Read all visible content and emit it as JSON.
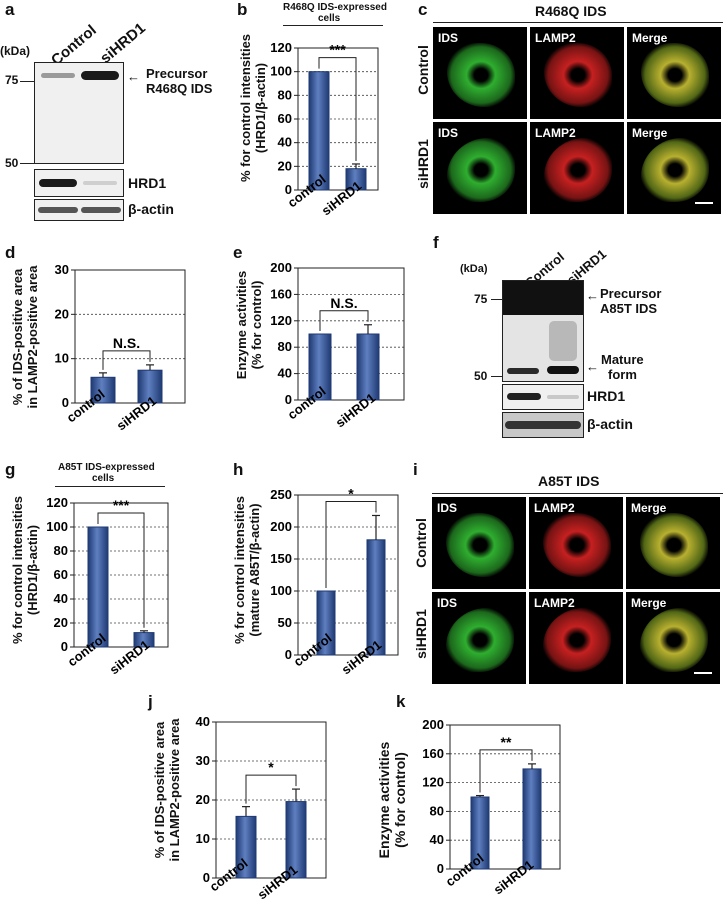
{
  "panels": {
    "a": {
      "letter": "a",
      "lanes": [
        "Control",
        "siHRD1"
      ],
      "kda_label": "(kDa)",
      "markers": [
        "75",
        "50"
      ],
      "precursor_label": "Precursor",
      "protein_label": "R468Q IDS",
      "hrd1_label": "HRD1",
      "actin_label": "β-actin"
    },
    "b": {
      "letter": "b",
      "header_line1": "R468Q IDS-expressed",
      "header_line2": "cells",
      "ylabel_line1": "% for control intensities",
      "ylabel_line2": "(HRD1/β-actin)",
      "significance": "***"
    },
    "c": {
      "letter": "c",
      "title": "R468Q IDS",
      "rows": [
        "Control",
        "siHRD1"
      ],
      "captions": [
        "IDS",
        "LAMP2",
        "Merge"
      ]
    },
    "d": {
      "letter": "d",
      "ylabel_line1": "% of IDS-positive area",
      "ylabel_line2": "in LAMP2-positive area",
      "significance": "N.S."
    },
    "e": {
      "letter": "e",
      "ylabel_line1": "Enzyme activities",
      "ylabel_line2": "(% for control)",
      "significance": "N.S."
    },
    "f": {
      "letter": "f",
      "lanes": [
        "Control",
        "siHRD1"
      ],
      "kda_label": "(kDa)",
      "markers": [
        "75",
        "50"
      ],
      "precursor_label": "Precursor",
      "protein_label": "A85T IDS",
      "mature_label1": "Mature",
      "mature_label2": "form",
      "hrd1_label": "HRD1",
      "actin_label": "β-actin"
    },
    "g": {
      "letter": "g",
      "header_line1": "A85T IDS-expressed",
      "header_line2": "cells",
      "ylabel_line1": "% for control intensities",
      "ylabel_line2": "(HRD1/β-actin)",
      "significance": "***"
    },
    "h": {
      "letter": "h",
      "ylabel_line1": "% for control intensities",
      "ylabel_line2": "(mature A85T/β-actin)",
      "significance": "*"
    },
    "i": {
      "letter": "i",
      "title": "A85T IDS",
      "rows": [
        "Control",
        "siHRD1"
      ],
      "captions": [
        "IDS",
        "LAMP2",
        "Merge"
      ]
    },
    "j": {
      "letter": "j",
      "ylabel_line1": "% of IDS-positive area",
      "ylabel_line2": "in LAMP2-positive area",
      "significance": "*"
    },
    "k": {
      "letter": "k",
      "ylabel_line1": "Enzyme activities",
      "ylabel_line2": "(% for control)",
      "significance": "**"
    }
  },
  "colors": {
    "bar": "#1f3a73",
    "bar_highlight": "#5f7fc0",
    "ids_green": "#2fae2f",
    "lamp2_red": "#c62020"
  },
  "chart_data": [
    {
      "id": "b",
      "type": "bar",
      "categories": [
        "control",
        "siHRD1"
      ],
      "values": [
        100,
        18
      ],
      "errors": [
        0,
        4
      ],
      "ylim": [
        0,
        120
      ],
      "yticks": [
        0,
        20,
        40,
        60,
        80,
        100,
        120
      ],
      "grid": true
    },
    {
      "id": "d",
      "type": "bar",
      "categories": [
        "control",
        "siHRD1"
      ],
      "values": [
        5.8,
        7.4
      ],
      "errors": [
        1.0,
        1.2
      ],
      "ylim": [
        0,
        30
      ],
      "yticks": [
        0,
        10,
        20,
        30
      ],
      "grid": true
    },
    {
      "id": "e",
      "type": "bar",
      "categories": [
        "control",
        "siHRD1"
      ],
      "values": [
        100,
        100
      ],
      "errors": [
        0,
        14
      ],
      "ylim": [
        0,
        200
      ],
      "yticks": [
        0,
        40,
        80,
        120,
        160,
        200
      ],
      "grid": true
    },
    {
      "id": "g",
      "type": "bar",
      "categories": [
        "control",
        "siHRD1"
      ],
      "values": [
        100,
        12
      ],
      "errors": [
        0,
        1.5
      ],
      "ylim": [
        0,
        120
      ],
      "yticks": [
        0,
        20,
        40,
        60,
        80,
        100,
        120
      ],
      "grid": true
    },
    {
      "id": "h",
      "type": "bar",
      "categories": [
        "control",
        "siHRD1"
      ],
      "values": [
        100,
        180
      ],
      "errors": [
        0,
        38
      ],
      "ylim": [
        0,
        250
      ],
      "yticks": [
        0,
        50,
        100,
        150,
        200,
        250
      ],
      "grid": true
    },
    {
      "id": "j",
      "type": "bar",
      "categories": [
        "control",
        "siHRD1"
      ],
      "values": [
        15.8,
        19.6
      ],
      "errors": [
        2.5,
        3.2
      ],
      "ylim": [
        0,
        40
      ],
      "yticks": [
        0,
        10,
        20,
        30,
        40
      ],
      "grid": true
    },
    {
      "id": "k",
      "type": "bar",
      "categories": [
        "control",
        "siHRD1"
      ],
      "values": [
        100,
        139
      ],
      "errors": [
        2,
        7
      ],
      "ylim": [
        0,
        200
      ],
      "yticks": [
        0,
        40,
        80,
        120,
        160,
        200
      ],
      "grid": true
    }
  ]
}
